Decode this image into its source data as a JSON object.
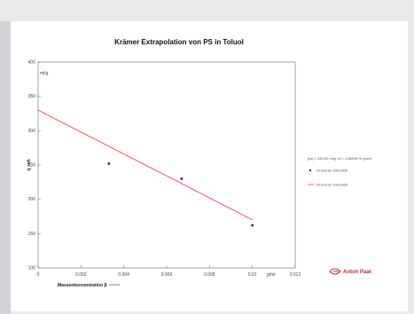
{
  "chart_data": {
    "type": "scatter",
    "title": "Krämer Extrapolation von PS in Toluol",
    "xlabel": "Massenkonzentration β",
    "xunit": "g/ml",
    "ylabel": "η_inh",
    "yunit": "ml/g",
    "xlim": [
      0,
      0.012
    ],
    "ylim": [
      100,
      400
    ],
    "xticks": [
      "0",
      "0.002",
      "0.004",
      "0.006",
      "0.008",
      "0.01",
      "0.012"
    ],
    "yticks": [
      "100",
      "150",
      "200",
      "250",
      "300",
      "350",
      "400"
    ],
    "series": [
      {
        "name": "Inherente Viskosität",
        "kind": "points",
        "x": [
          0.0033,
          0.0067,
          0.01
        ],
        "y": [
          252,
          230,
          162
        ],
        "color": "#333333"
      },
      {
        "name": "Inherente Viskosität",
        "kind": "fit-line",
        "x": [
          0.0,
          0.01
        ],
        "y": [
          330,
          170
        ],
        "color": "#e8463f"
      }
    ],
    "annotation": "[ηs] = 330,32 ml/g, M = 1,8629E+6 g/mol",
    "legend_position": "right",
    "grid": false
  },
  "logo": {
    "text": "Anton Paar",
    "color": "#c0282d"
  }
}
